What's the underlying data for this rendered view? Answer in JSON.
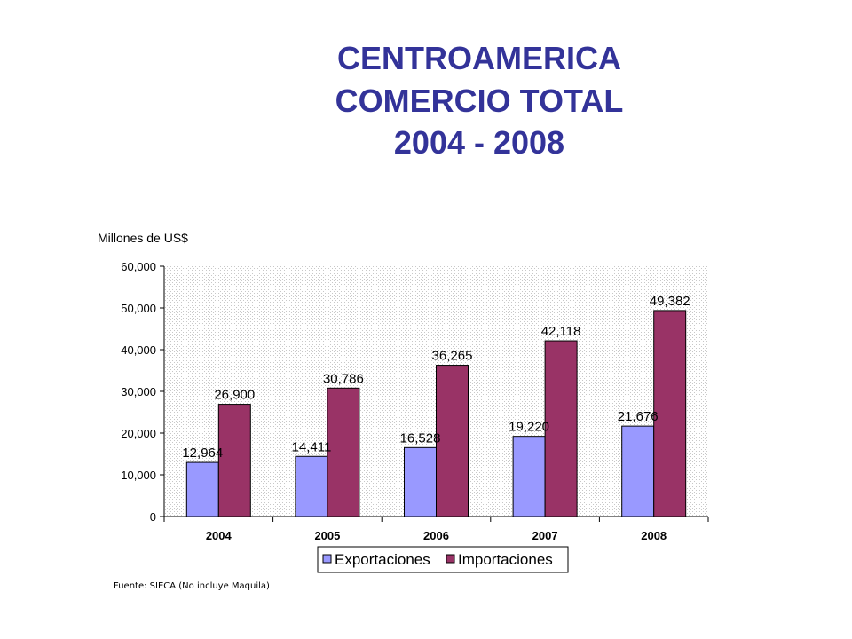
{
  "title": {
    "line1": "CENTROAMERICA",
    "line2": "COMERCIO TOTAL",
    "line3": "2004 - 2008"
  },
  "source_note": "Fuente: SIECA (No incluye Maquila)",
  "colors": {
    "title": "#333399",
    "exportaciones": "#9999FF",
    "importaciones": "#993366"
  },
  "chart_data": {
    "type": "bar",
    "ylabel": "Millones de US$",
    "xlabel": "",
    "categories": [
      "2004",
      "2005",
      "2006",
      "2007",
      "2008"
    ],
    "ylim": [
      0,
      60000
    ],
    "yticks": [
      0,
      10000,
      20000,
      30000,
      40000,
      50000,
      60000
    ],
    "ytick_labels": [
      "0",
      "10,000",
      "20,000",
      "30,000",
      "40,000",
      "50,000",
      "60,000"
    ],
    "grid": false,
    "legend": "bottom",
    "series": [
      {
        "name": "Exportaciones",
        "values": [
          12964,
          14411,
          16528,
          19220,
          21676
        ],
        "labels": [
          "12,964",
          "14,411",
          "16,528",
          "19,220",
          "21,676"
        ]
      },
      {
        "name": "Importaciones",
        "values": [
          26900,
          30786,
          36265,
          42118,
          49382
        ],
        "labels": [
          "26,900",
          "30,786",
          "36,265",
          "42,118",
          "49,382"
        ]
      }
    ]
  }
}
